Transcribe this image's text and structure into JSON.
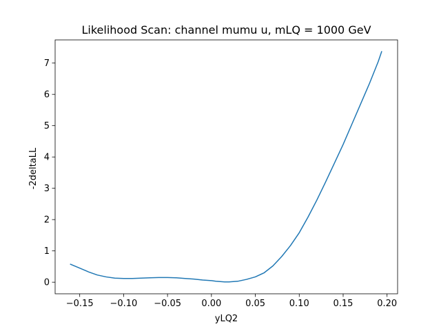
{
  "chart_data": {
    "type": "line",
    "title": "Likelihood Scan: channel mumu u, mLQ = 1000 GeV",
    "xlabel": "yLQ2",
    "ylabel": "-2deltaLL",
    "xlim": [
      -0.178,
      0.212
    ],
    "ylim": [
      -0.37,
      7.74
    ],
    "x_ticks": [
      -0.15,
      -0.1,
      -0.05,
      0.0,
      0.05,
      0.1,
      0.15,
      0.2
    ],
    "x_tick_labels": [
      "−0.15",
      "−0.10",
      "−0.05",
      "0.00",
      "0.05",
      "0.10",
      "0.15",
      "0.20"
    ],
    "y_ticks": [
      0,
      1,
      2,
      3,
      4,
      5,
      6,
      7
    ],
    "y_tick_labels": [
      "0",
      "1",
      "2",
      "3",
      "4",
      "5",
      "6",
      "7"
    ],
    "grid": false,
    "series": [
      {
        "color": "#1f77b4",
        "x": [
          -0.161,
          -0.15,
          -0.14,
          -0.13,
          -0.12,
          -0.11,
          -0.1,
          -0.09,
          -0.08,
          -0.07,
          -0.06,
          -0.05,
          -0.04,
          -0.03,
          -0.02,
          -0.01,
          0.0,
          0.005,
          0.01,
          0.015,
          0.02,
          0.025,
          0.03,
          0.04,
          0.05,
          0.06,
          0.07,
          0.08,
          0.09,
          0.1,
          0.11,
          0.12,
          0.13,
          0.14,
          0.15,
          0.16,
          0.17,
          0.18,
          0.19,
          0.194
        ],
        "y": [
          0.58,
          0.45,
          0.33,
          0.23,
          0.17,
          0.13,
          0.12,
          0.12,
          0.13,
          0.14,
          0.15,
          0.15,
          0.14,
          0.12,
          0.1,
          0.07,
          0.05,
          0.03,
          0.02,
          0.01,
          0.01,
          0.02,
          0.03,
          0.09,
          0.17,
          0.3,
          0.52,
          0.82,
          1.17,
          1.58,
          2.08,
          2.62,
          3.2,
          3.8,
          4.4,
          5.05,
          5.7,
          6.35,
          7.05,
          7.38
        ]
      }
    ]
  }
}
